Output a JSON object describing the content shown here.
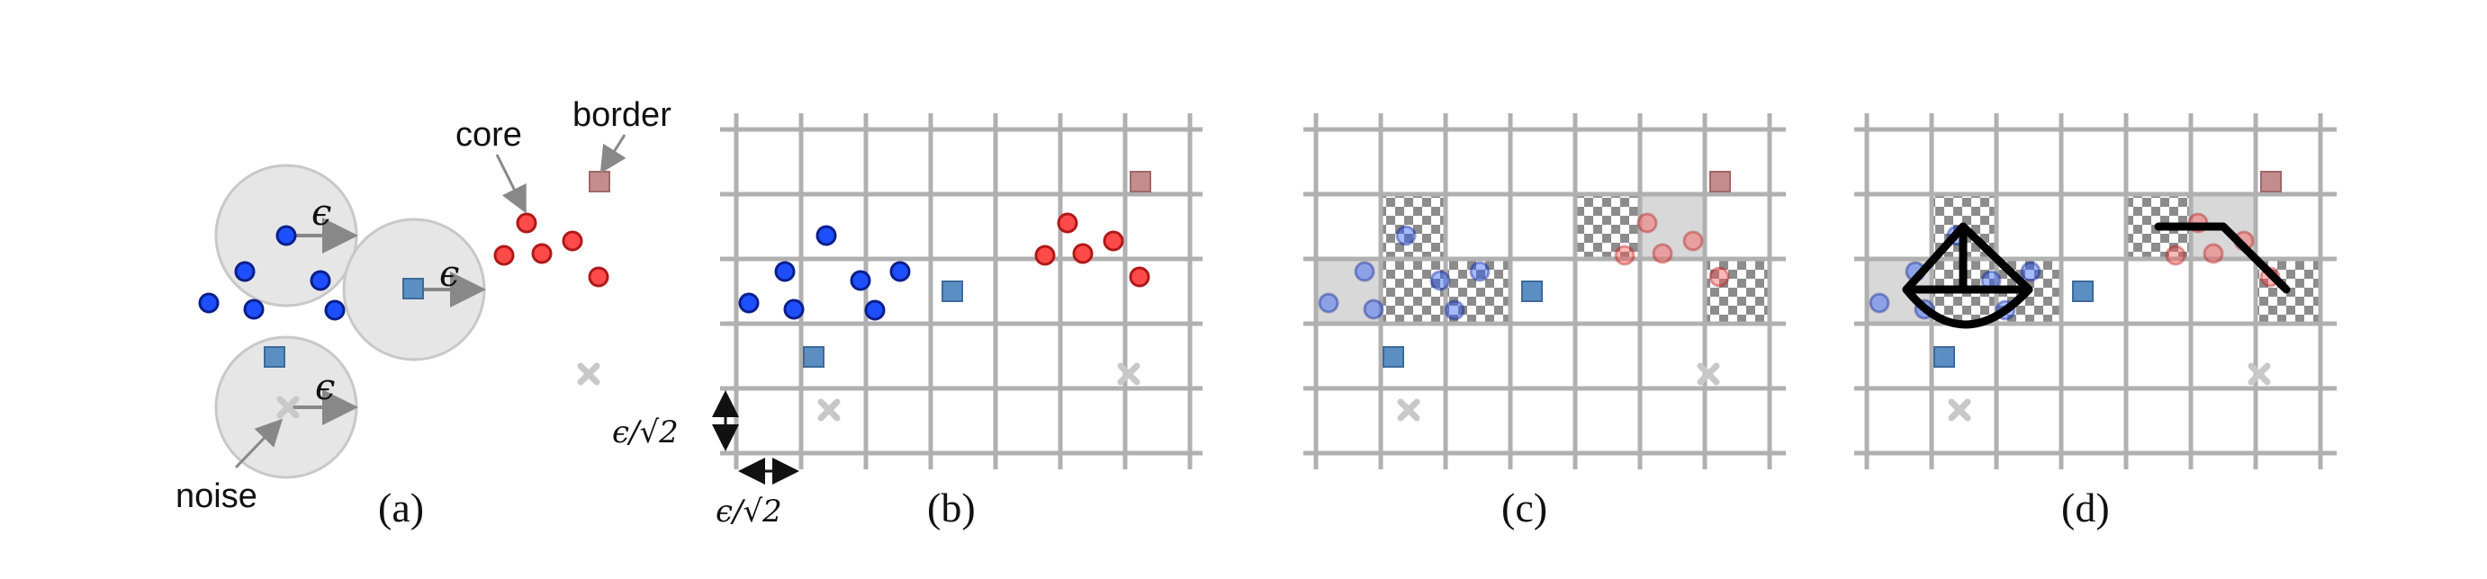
{
  "colors": {
    "blue_core": "#1e4fff",
    "blue_stroke": "#0a1e8c",
    "red_core": "#ff4a4a",
    "red_stroke": "#b01818",
    "blue_border": "#5b8fc4",
    "red_border": "#c48c8c",
    "noise": "#c8c8c8",
    "grid": "#b0b0b0",
    "circle_fill": "#e6e6e6",
    "shade": "#d8d8d8"
  },
  "panel_a": {
    "label": "(a)",
    "core_label": "core",
    "border_label": "border",
    "noise_label": "noise",
    "epsilon": "ϵ"
  },
  "panel_b": {
    "label": "(b)",
    "cell_size_label": "ϵ/√2"
  },
  "panel_c": {
    "label": "(c)"
  },
  "panel_d": {
    "label": "(d)"
  }
}
